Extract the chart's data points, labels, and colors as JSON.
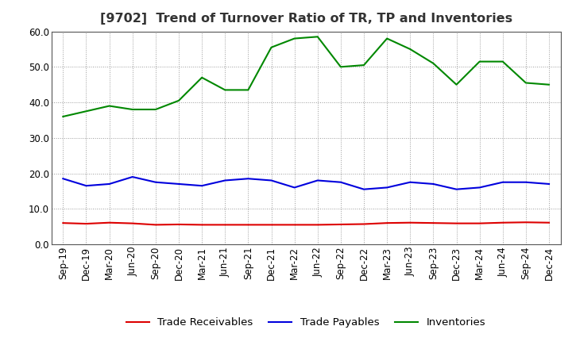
{
  "title": "[9702]  Trend of Turnover Ratio of TR, TP and Inventories",
  "x_labels": [
    "Sep-19",
    "Dec-19",
    "Mar-20",
    "Jun-20",
    "Sep-20",
    "Dec-20",
    "Mar-21",
    "Jun-21",
    "Sep-21",
    "Dec-21",
    "Mar-22",
    "Jun-22",
    "Sep-22",
    "Dec-22",
    "Mar-23",
    "Jun-23",
    "Sep-23",
    "Dec-23",
    "Mar-24",
    "Jun-24",
    "Sep-24",
    "Dec-24"
  ],
  "trade_receivables": [
    6.0,
    5.8,
    6.1,
    5.9,
    5.5,
    5.6,
    5.5,
    5.5,
    5.5,
    5.5,
    5.5,
    5.5,
    5.6,
    5.7,
    6.0,
    6.1,
    6.0,
    5.9,
    5.9,
    6.1,
    6.2,
    6.1
  ],
  "trade_payables": [
    18.5,
    16.5,
    17.0,
    19.0,
    17.5,
    17.0,
    16.5,
    18.0,
    18.5,
    18.0,
    16.0,
    18.0,
    17.5,
    15.5,
    16.0,
    17.5,
    17.0,
    15.5,
    16.0,
    17.5,
    17.5,
    17.0
  ],
  "inventories": [
    36.0,
    37.5,
    39.0,
    38.0,
    38.0,
    40.5,
    47.0,
    43.5,
    43.5,
    55.5,
    58.0,
    58.5,
    50.0,
    50.5,
    58.0,
    55.0,
    51.0,
    45.0,
    51.5,
    51.5,
    45.5,
    45.0
  ],
  "color_tr": "#dd0000",
  "color_tp": "#0000dd",
  "color_inv": "#008800",
  "ylim": [
    0.0,
    60.0
  ],
  "yticks": [
    0.0,
    10.0,
    20.0,
    30.0,
    40.0,
    50.0,
    60.0
  ],
  "background_color": "#ffffff",
  "grid_color": "#999999",
  "title_fontsize": 11.5,
  "legend_fontsize": 9.5,
  "axis_fontsize": 8.5
}
